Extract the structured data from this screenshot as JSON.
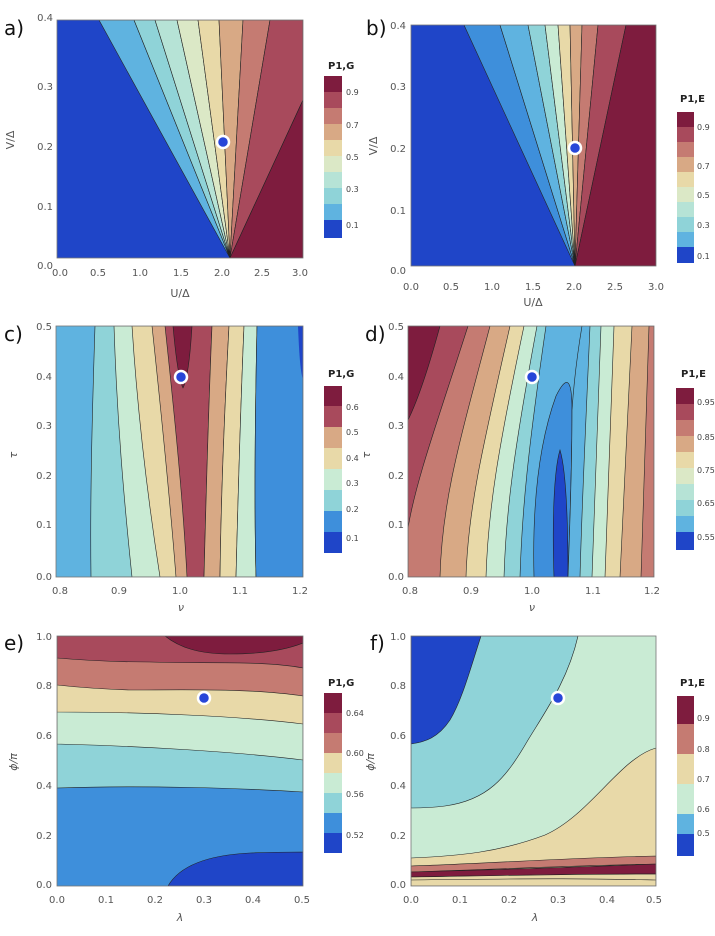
{
  "colors": {
    "palette": [
      "#1f45c8",
      "#3e8fdb",
      "#5fb3e0",
      "#8fd3d8",
      "#c9ebd4",
      "#e8d9a8",
      "#d8a985",
      "#c57b72",
      "#a84a5c",
      "#7e1c3e"
    ],
    "dot_fill": "#2746d8",
    "dot_ring": "#ffffff"
  },
  "chart_data": [
    {
      "panel": "a)",
      "type": "contour",
      "xlabel": "U/Δ",
      "ylabel": "V/Δ",
      "xlim": [
        0,
        3
      ],
      "ylim": [
        0,
        0.4
      ],
      "xticks": [
        "0.0",
        "0.5",
        "1.0",
        "1.5",
        "2.0",
        "2.5",
        "3.0"
      ],
      "yticks": [
        "0.0",
        "0.1",
        "0.2",
        "0.3",
        "0.4"
      ],
      "legend_title": "P1,G",
      "legend_levels": [
        0,
        0.1,
        0.2,
        0.3,
        0.4,
        0.5,
        0.6,
        0.7,
        0.8,
        0.9,
        1.0
      ],
      "legend_labels": [
        "0.1",
        "0.3",
        "0.5",
        "0.7",
        "0.9"
      ],
      "marker": {
        "x": 2.0,
        "y": 0.2
      }
    },
    {
      "panel": "b)",
      "type": "contour",
      "xlabel": "U/Δ",
      "ylabel": "V/Δ",
      "xlim": [
        0,
        3
      ],
      "ylim": [
        0,
        0.4
      ],
      "xticks": [
        "0.0",
        "0.5",
        "1.0",
        "1.5",
        "2.0",
        "2.5",
        "3.0"
      ],
      "yticks": [
        "0.0",
        "0.1",
        "0.2",
        "0.3",
        "0.4"
      ],
      "legend_title": "P1,E",
      "legend_levels": [
        0,
        0.1,
        0.2,
        0.3,
        0.4,
        0.5,
        0.6,
        0.7,
        0.8,
        0.9,
        1.0
      ],
      "legend_labels": [
        "0.1",
        "0.3",
        "0.5",
        "0.7",
        "0.9"
      ],
      "marker": {
        "x": 2.0,
        "y": 0.2
      }
    },
    {
      "panel": "c)",
      "type": "contour",
      "xlabel": "ν",
      "ylabel": "τ",
      "xlim": [
        0.8,
        1.2
      ],
      "ylim": [
        0,
        0.5
      ],
      "xticks": [
        "0.8",
        "0.9",
        "1.0",
        "1.1",
        "1.2"
      ],
      "yticks": [
        "0.0",
        "0.1",
        "0.2",
        "0.3",
        "0.4",
        "0.5"
      ],
      "legend_title": "P1,G",
      "legend_levels": [
        0.05,
        0.1,
        0.15,
        0.2,
        0.25,
        0.3,
        0.35,
        0.4,
        0.45,
        0.5,
        0.55,
        0.6,
        0.65
      ],
      "legend_labels": [
        "0.1",
        "0.2",
        "0.3",
        "0.4",
        "0.5",
        "0.6"
      ],
      "marker": {
        "x": 1.0,
        "y": 0.4
      }
    },
    {
      "panel": "d)",
      "type": "contour",
      "xlabel": "ν",
      "ylabel": "τ",
      "xlim": [
        0.8,
        1.2
      ],
      "ylim": [
        0,
        0.5
      ],
      "xticks": [
        "0.8",
        "0.9",
        "1.0",
        "1.1",
        "1.2"
      ],
      "yticks": [
        "0.0",
        "0.1",
        "0.2",
        "0.3",
        "0.4",
        "0.5"
      ],
      "legend_title": "P1,E",
      "legend_levels": [
        0.5,
        0.55,
        0.6,
        0.65,
        0.7,
        0.75,
        0.8,
        0.85,
        0.9,
        0.95,
        1.0
      ],
      "legend_labels": [
        "0.55",
        "0.65",
        "0.75",
        "0.85",
        "0.95"
      ],
      "marker": {
        "x": 1.0,
        "y": 0.4
      }
    },
    {
      "panel": "e)",
      "type": "contour",
      "xlabel": "λ",
      "ylabel": "ϕ/π",
      "xlim": [
        0,
        0.5
      ],
      "ylim": [
        0,
        1.0
      ],
      "xticks": [
        "0.0",
        "0.1",
        "0.2",
        "0.3",
        "0.4",
        "0.5"
      ],
      "yticks": [
        "0.0",
        "0.2",
        "0.4",
        "0.6",
        "0.8",
        "1.0"
      ],
      "legend_title": "P1,G",
      "legend_levels": [
        0.5,
        0.52,
        0.54,
        0.56,
        0.58,
        0.6,
        0.62,
        0.64,
        0.66
      ],
      "legend_labels": [
        "0.52",
        "0.56",
        "0.60",
        "0.64"
      ],
      "marker": {
        "x": 0.3,
        "y": 0.75
      }
    },
    {
      "panel": "f)",
      "type": "contour",
      "xlabel": "λ",
      "ylabel": "ϕ/π",
      "xlim": [
        0,
        0.5
      ],
      "ylim": [
        0,
        1.0
      ],
      "xticks": [
        "0.0",
        "0.1",
        "0.2",
        "0.3",
        "0.4",
        "0.5"
      ],
      "yticks": [
        "0.0",
        "0.2",
        "0.4",
        "0.6",
        "0.8",
        "1.0"
      ],
      "legend_title": "P1,E",
      "legend_levels": [
        0.45,
        0.5,
        0.6,
        0.7,
        0.8,
        0.9,
        0.95
      ],
      "legend_labels": [
        "0.5",
        "0.6",
        "0.7",
        "0.8",
        "0.9"
      ],
      "marker": {
        "x": 0.3,
        "y": 0.75
      }
    }
  ]
}
